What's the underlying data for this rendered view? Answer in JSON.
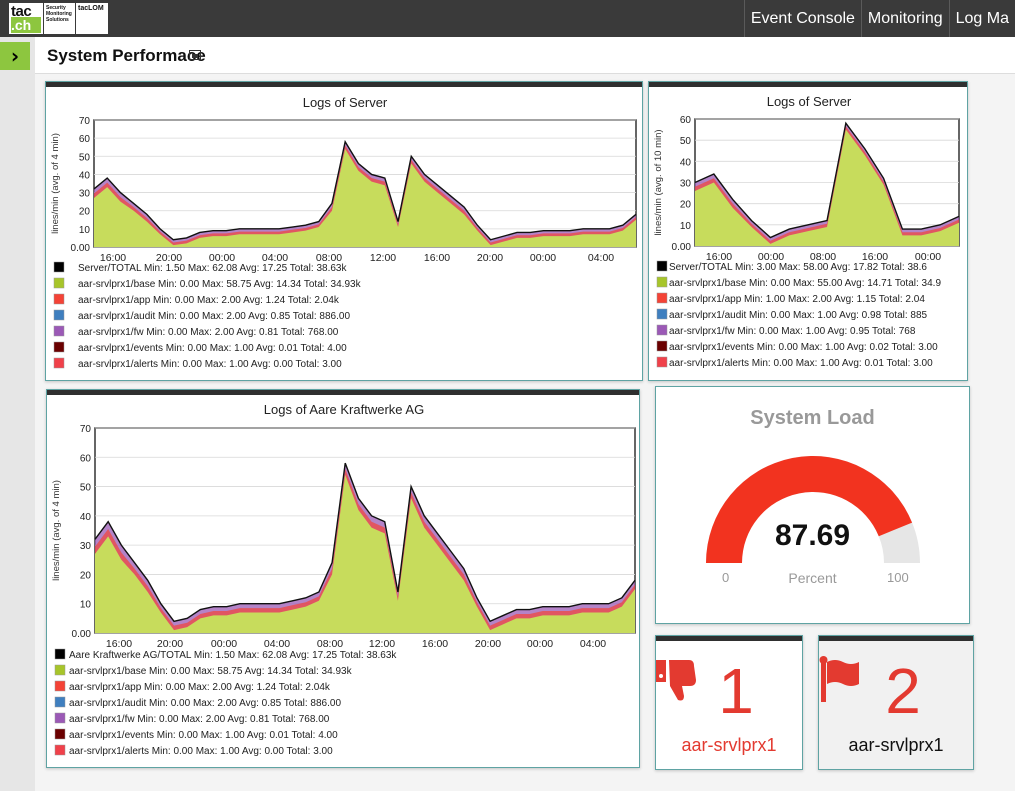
{
  "logo": {
    "line1": "tac",
    "line2": ".ch",
    "sub": "Security Monitoring Solutions",
    "product": "tacLOM"
  },
  "nav": [
    "Event Console",
    "Monitoring",
    "Log Ma"
  ],
  "page": {
    "title": "System Performace"
  },
  "legend_colors": [
    "#000000",
    "#a7c52a",
    "#f44336",
    "#3f7fbf",
    "#9b59b6",
    "#6a0000",
    "#f0414a"
  ],
  "charts": [
    {
      "title": "Logs of Server",
      "ylabel": "lines/min (avg. of 4 min)",
      "ylim": [
        0,
        70
      ],
      "yticks": [
        "70",
        "60",
        "50",
        "40",
        "30",
        "20",
        "10",
        "0.00"
      ],
      "xticks": [
        "16:00",
        "20:00",
        "00:00",
        "04:00",
        "08:00",
        "12:00",
        "16:00",
        "20:00",
        "00:00",
        "04:00"
      ],
      "legend": [
        "Server/TOTAL     Min: 1.50 Max: 62.08 Avg: 17.25 Total: 38.63k",
        "aar-srvlprx1/base        Min: 0.00 Max: 58.75 Avg: 14.34 Total: 34.93k",
        "aar-srvlprx1/app         Min: 0.00 Max: 2.00   Avg: 1.24   Total: 2.04k",
        "aar-srvlprx1/audit       Min: 0.00 Max: 2.00   Avg: 0.85   Total: 886.00",
        "aar-srvlprx1/fw          Min: 0.00 Max: 2.00   Avg: 0.81   Total: 768.00",
        "aar-srvlprx1/events   Min: 0.00 Max: 1.00   Avg: 0.01   Total: 4.00",
        "aar-srvlprx1/alerts    Min: 0.00 Max: 1.00   Avg: 0.00   Total: 3.00"
      ]
    },
    {
      "title": "Logs of Server",
      "ylabel": "lines/min (avg. of 10 min)",
      "ylim": [
        0,
        60
      ],
      "yticks": [
        "60",
        "50",
        "40",
        "30",
        "20",
        "10",
        "0.00"
      ],
      "xticks": [
        "16:00",
        "00:00",
        "08:00",
        "16:00",
        "00:00"
      ],
      "legend": [
        "Server/TOTAL     Min: 3.00 Max: 58.00 Avg: 17.82 Total: 38.6",
        "aar-srvlprx1/base        Min: 0.00 Max: 55.00 Avg: 14.71 Total: 34.9",
        "aar-srvlprx1/app         Min: 1.00 Max: 2.00   Avg: 1.15   Total: 2.04",
        "aar-srvlprx1/audit       Min: 0.00 Max: 1.00   Avg: 0.98   Total: 885",
        "aar-srvlprx1/fw          Min: 0.00 Max: 1.00   Avg: 0.95   Total: 768",
        "aar-srvlprx1/events   Min: 0.00 Max: 1.00   Avg: 0.02   Total: 3.00",
        "aar-srvlprx1/alerts    Min: 0.00 Max: 1.00   Avg: 0.01   Total: 3.00"
      ]
    },
    {
      "title": "Logs of Aare Kraftwerke AG",
      "ylabel": "lines/min (avg. of 4 min)",
      "ylim": [
        0,
        70
      ],
      "yticks": [
        "70",
        "60",
        "50",
        "40",
        "30",
        "20",
        "10",
        "0.00"
      ],
      "xticks": [
        "16:00",
        "20:00",
        "00:00",
        "04:00",
        "08:00",
        "12:00",
        "16:00",
        "20:00",
        "00:00",
        "04:00"
      ],
      "legend": [
        "Aare Kraftwerke AG/TOTAL Min: 1.50 Max: 62.08 Avg: 17.25 Total: 38.63k",
        "aar-srvlprx1/base            Min: 0.00 Max: 58.75 Avg: 14.34 Total: 34.93k",
        "aar-srvlprx1/app             Min: 0.00 Max: 2.00   Avg: 1.24   Total: 2.04k",
        "aar-srvlprx1/audit           Min: 0.00 Max: 2.00   Avg: 0.85   Total: 886.00",
        "aar-srvlprx1/fw              Min: 0.00 Max: 2.00   Avg: 0.81   Total: 768.00",
        "aar-srvlprx1/events       Min: 0.00 Max: 1.00   Avg: 0.01   Total: 4.00",
        "aar-srvlprx1/alerts        Min: 0.00 Max: 1.00   Avg: 0.00   Total: 3.00"
      ]
    }
  ],
  "gauge": {
    "title": "System Load",
    "value": "87.69",
    "value_num": 87.69,
    "unit": "Percent",
    "min": "0",
    "max": "100",
    "fill_color": "#f2331f",
    "track_color": "#e6e6e6"
  },
  "stats": [
    {
      "icon": "thumbs-down-icon",
      "count": "1",
      "label": "aar-srvlprx1",
      "color": "#e33a30"
    },
    {
      "icon": "flag-icon",
      "count": "2",
      "label": "aar-srvlprx1",
      "color": "#e33a30",
      "label_color": "#111111"
    }
  ],
  "chart_data": [
    {
      "type": "area",
      "title": "Logs of Server",
      "ylabel": "lines/min (avg. of 4 min)",
      "ylim": [
        0,
        70
      ],
      "x": [
        "14:00",
        "15:00",
        "16:00",
        "17:00",
        "18:00",
        "19:00",
        "20:00",
        "21:00",
        "22:00",
        "23:00",
        "00:00",
        "01:00",
        "02:00",
        "03:00",
        "04:00",
        "05:00",
        "06:00",
        "07:00",
        "08:00",
        "09:00",
        "10:00",
        "11:00",
        "12:00",
        "13:00",
        "14:00",
        "15:00",
        "16:00",
        "17:00",
        "18:00",
        "19:00",
        "20:00",
        "21:00",
        "22:00",
        "23:00",
        "00:00",
        "01:00",
        "02:00",
        "03:00",
        "04:00",
        "05:00",
        "06:00",
        "07:00"
      ],
      "series": [
        {
          "name": "Server/TOTAL",
          "values": [
            32,
            38,
            30,
            24,
            18,
            10,
            4,
            5,
            8,
            9,
            9,
            10,
            10,
            10,
            10,
            11,
            12,
            14,
            24,
            58,
            46,
            40,
            38,
            14,
            50,
            40,
            34,
            28,
            22,
            12,
            4,
            6,
            8,
            8,
            9,
            9,
            9,
            10,
            10,
            10,
            12,
            18
          ]
        },
        {
          "name": "aar-srvlprx1/base",
          "values": [
            27,
            33,
            25,
            20,
            14,
            7,
            1,
            2,
            5,
            6,
            6,
            7,
            7,
            7,
            7,
            8,
            9,
            11,
            20,
            54,
            42,
            36,
            34,
            11,
            46,
            36,
            30,
            24,
            18,
            9,
            1,
            3,
            5,
            5,
            6,
            6,
            6,
            7,
            7,
            7,
            9,
            15
          ]
        }
      ]
    },
    {
      "type": "area",
      "title": "Logs of Server",
      "ylabel": "lines/min (avg. of 10 min)",
      "ylim": [
        0,
        60
      ],
      "x": [
        "13:00",
        "16:00",
        "19:00",
        "22:00",
        "01:00",
        "04:00",
        "07:00",
        "10:00",
        "13:00",
        "16:00",
        "19:00",
        "22:00",
        "01:00",
        "04:00",
        "07:00"
      ],
      "series": [
        {
          "name": "Server/TOTAL",
          "values": [
            30,
            34,
            22,
            12,
            4,
            8,
            10,
            12,
            58,
            46,
            32,
            8,
            8,
            10,
            14
          ]
        },
        {
          "name": "aar-srvlprx1/base",
          "values": [
            26,
            30,
            18,
            9,
            1,
            5,
            7,
            9,
            55,
            43,
            29,
            5,
            5,
            7,
            11
          ]
        }
      ]
    },
    {
      "type": "area",
      "title": "Logs of Aare Kraftwerke AG",
      "ylabel": "lines/min (avg. of 4 min)",
      "ylim": [
        0,
        70
      ],
      "x": [
        "14:00",
        "15:00",
        "16:00",
        "17:00",
        "18:00",
        "19:00",
        "20:00",
        "21:00",
        "22:00",
        "23:00",
        "00:00",
        "01:00",
        "02:00",
        "03:00",
        "04:00",
        "05:00",
        "06:00",
        "07:00",
        "08:00",
        "09:00",
        "10:00",
        "11:00",
        "12:00",
        "13:00",
        "14:00",
        "15:00",
        "16:00",
        "17:00",
        "18:00",
        "19:00",
        "20:00",
        "21:00",
        "22:00",
        "23:00",
        "00:00",
        "01:00",
        "02:00",
        "03:00",
        "04:00",
        "05:00",
        "06:00",
        "07:00"
      ],
      "series": [
        {
          "name": "Aare Kraftwerke AG/TOTAL",
          "values": [
            32,
            38,
            30,
            24,
            18,
            10,
            4,
            5,
            8,
            9,
            9,
            10,
            10,
            10,
            10,
            11,
            12,
            14,
            24,
            58,
            46,
            40,
            38,
            14,
            50,
            40,
            34,
            28,
            22,
            12,
            4,
            6,
            8,
            8,
            9,
            9,
            9,
            10,
            10,
            10,
            12,
            18
          ]
        },
        {
          "name": "aar-srvlprx1/base",
          "values": [
            27,
            33,
            25,
            20,
            14,
            7,
            1,
            2,
            5,
            6,
            6,
            7,
            7,
            7,
            7,
            8,
            9,
            11,
            20,
            54,
            42,
            36,
            34,
            11,
            46,
            36,
            30,
            24,
            18,
            9,
            1,
            3,
            5,
            5,
            6,
            6,
            6,
            7,
            7,
            7,
            9,
            15
          ]
        }
      ]
    }
  ]
}
